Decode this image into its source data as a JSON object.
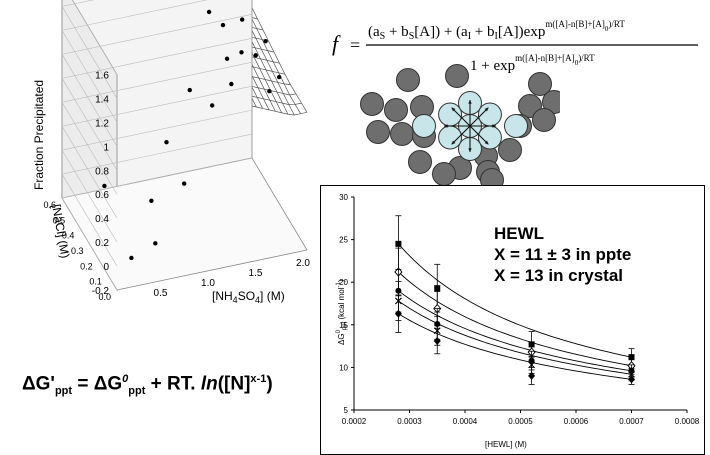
{
  "equation": {
    "f": "f",
    "eq": "=",
    "numerator": "(a",
    "numerator_parts": [
      "(a",
      "S",
      " + b",
      "S",
      "[A]) + (a",
      "I",
      " + b",
      "I",
      "[A])exp",
      "m([A]-n[B]+[A]",
      "0",
      ")/RT"
    ],
    "denominator_parts": [
      "1 + exp",
      "m([A]-n[B]+[A]",
      "0",
      ")/RT"
    ]
  },
  "surface_plot": {
    "z_axis_label": "Fraction Precipitated",
    "z_ticks": [
      "1.6",
      "1.4",
      "1.2",
      "1",
      "0.8",
      "0.6",
      "0.4",
      "0.2",
      "0",
      "-0.2"
    ],
    "y_axis_label": "[NaCl] (M)",
    "y_ticks": [
      "0.6",
      "0.5",
      "0.4",
      "0.3",
      "0.2",
      "0.1",
      "0.0"
    ],
    "x_axis_label_parts": [
      "[NH",
      "4",
      "SO",
      "4",
      "] (M)"
    ],
    "x_ticks": [
      "0.5",
      "1.0",
      "1.5",
      "2.0"
    ]
  },
  "formula": {
    "parts": [
      "ΔG'",
      "ppt",
      " = ΔG",
      "0",
      "ppt",
      " + RT. ",
      "ln",
      "([N]",
      "x-1",
      ")"
    ]
  },
  "chart_data": {
    "type": "scatter",
    "xlabel": "[HEWL] (M)",
    "ylabel": "ΔG⁰ppt (kcal mol⁻¹)",
    "xlim": [
      0.0002,
      0.0008
    ],
    "ylim": [
      5,
      30
    ],
    "x_ticks": [
      "0.0002",
      "0.0003",
      "0.0004",
      "0.0005",
      "0.0006",
      "0.0007",
      "0.0008"
    ],
    "y_ticks": [
      "5",
      "10",
      "15",
      "20",
      "25",
      "30"
    ],
    "annotation": [
      "HEWL",
      "X = 11 ± 3 in ppte",
      "X = 13 in crystal"
    ],
    "x": [
      0.00028,
      0.00035,
      0.00052,
      0.0007
    ],
    "series": [
      {
        "marker": "square",
        "values": [
          24.5,
          19.3,
          12.7,
          11.2
        ],
        "errors": [
          3.3,
          2.8,
          1.5,
          1.0
        ]
      },
      {
        "marker": "diamond-open",
        "values": [
          21.2,
          16.9,
          11.8,
          10.2
        ],
        "errors": [
          2.8,
          2.0,
          1.2,
          0.8
        ]
      },
      {
        "marker": "circle",
        "values": [
          19.0,
          15.1,
          10.8,
          9.6
        ],
        "errors": [
          2.5,
          1.8,
          1.1,
          0.7
        ]
      },
      {
        "marker": "cross",
        "values": [
          17.8,
          14.3,
          10.3,
          9.2
        ],
        "errors": [
          2.3,
          1.7,
          1.0,
          0.7
        ]
      },
      {
        "marker": "diamond",
        "values": [
          16.3,
          13.1,
          9.0,
          8.6
        ],
        "errors": [
          2.2,
          1.5,
          1.0,
          0.6
        ]
      }
    ]
  }
}
